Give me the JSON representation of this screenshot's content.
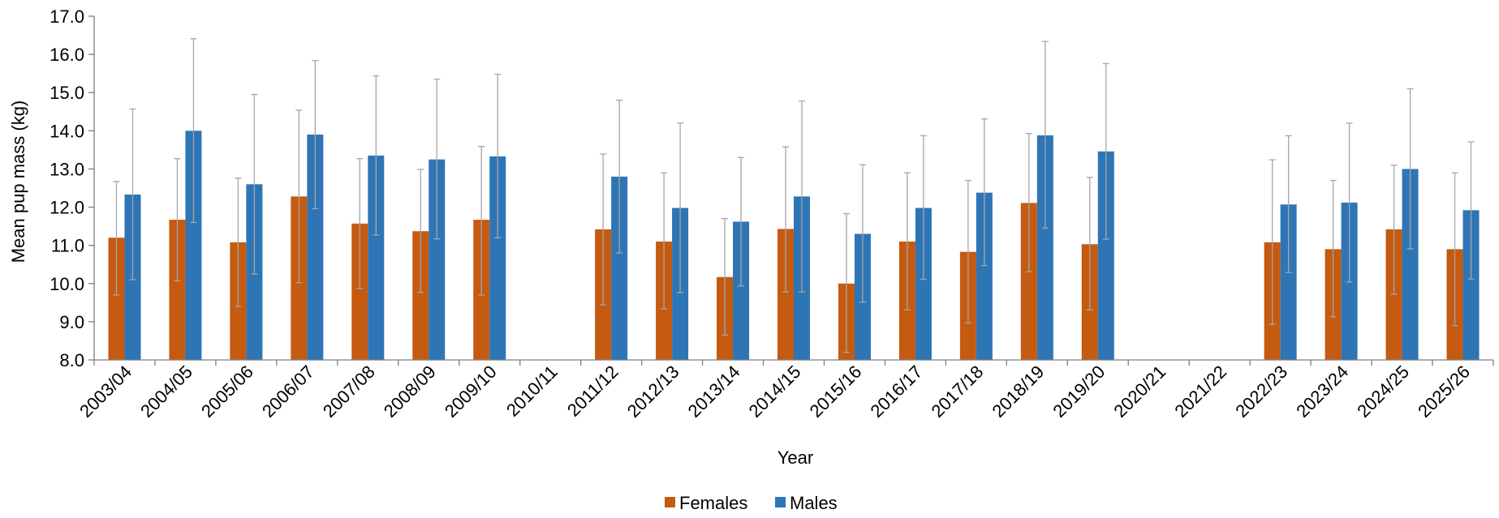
{
  "chart_data": {
    "type": "bar",
    "xlabel": "Year",
    "ylabel": "Mean pup mass (kg)",
    "ylim": [
      8.0,
      17.0
    ],
    "ytick_step": 1.0,
    "grid": false,
    "legend_position": "bottom",
    "categories": [
      "2003/04",
      "2004/05",
      "2005/06",
      "2006/07",
      "2007/08",
      "2008/09",
      "2009/10",
      "2010/11",
      "2011/12",
      "2012/13",
      "2013/14",
      "2014/15",
      "2015/16",
      "2016/17",
      "2017/18",
      "2018/19",
      "2019/20",
      "2020/21",
      "2021/22",
      "2022/23",
      "2023/24",
      "2024/25",
      "2025/26"
    ],
    "series": [
      {
        "name": "Females",
        "color": "#c55a11",
        "values": [
          11.2,
          11.67,
          11.08,
          12.28,
          11.57,
          11.37,
          11.67,
          null,
          11.42,
          11.1,
          10.17,
          11.43,
          10.0,
          11.1,
          10.83,
          12.11,
          11.03,
          null,
          null,
          11.08,
          10.9,
          11.42,
          10.9
        ],
        "err_low": [
          9.7,
          10.07,
          9.4,
          10.02,
          9.87,
          9.77,
          9.7,
          null,
          9.44,
          9.34,
          8.65,
          9.78,
          8.2,
          9.31,
          8.97,
          10.31,
          9.31,
          null,
          null,
          8.93,
          9.13,
          9.72,
          8.9
        ],
        "err_high": [
          12.67,
          13.27,
          12.76,
          14.54,
          13.27,
          12.99,
          13.59,
          null,
          13.39,
          12.9,
          11.7,
          13.58,
          11.83,
          12.9,
          12.7,
          13.93,
          12.78,
          null,
          null,
          13.24,
          12.7,
          13.1,
          12.9
        ]
      },
      {
        "name": "Males",
        "color": "#2e75b6",
        "values": [
          12.33,
          14.0,
          12.6,
          13.9,
          13.35,
          13.25,
          13.33,
          null,
          12.8,
          11.98,
          11.62,
          12.28,
          11.3,
          11.98,
          12.38,
          13.88,
          13.46,
          null,
          null,
          12.07,
          12.12,
          13.0,
          11.92
        ],
        "err_low": [
          10.1,
          11.6,
          10.25,
          11.96,
          11.27,
          11.17,
          11.2,
          null,
          10.8,
          9.76,
          9.94,
          9.78,
          9.51,
          10.11,
          10.47,
          11.45,
          11.16,
          null,
          null,
          10.29,
          10.04,
          10.91,
          10.12
        ],
        "err_high": [
          14.57,
          16.41,
          14.95,
          15.84,
          15.44,
          15.35,
          15.48,
          null,
          14.8,
          14.2,
          13.3,
          14.78,
          13.11,
          13.87,
          14.31,
          16.34,
          15.76,
          null,
          null,
          13.87,
          14.2,
          15.1,
          13.71
        ]
      }
    ],
    "error_bar_color": "#a6a6a6"
  }
}
